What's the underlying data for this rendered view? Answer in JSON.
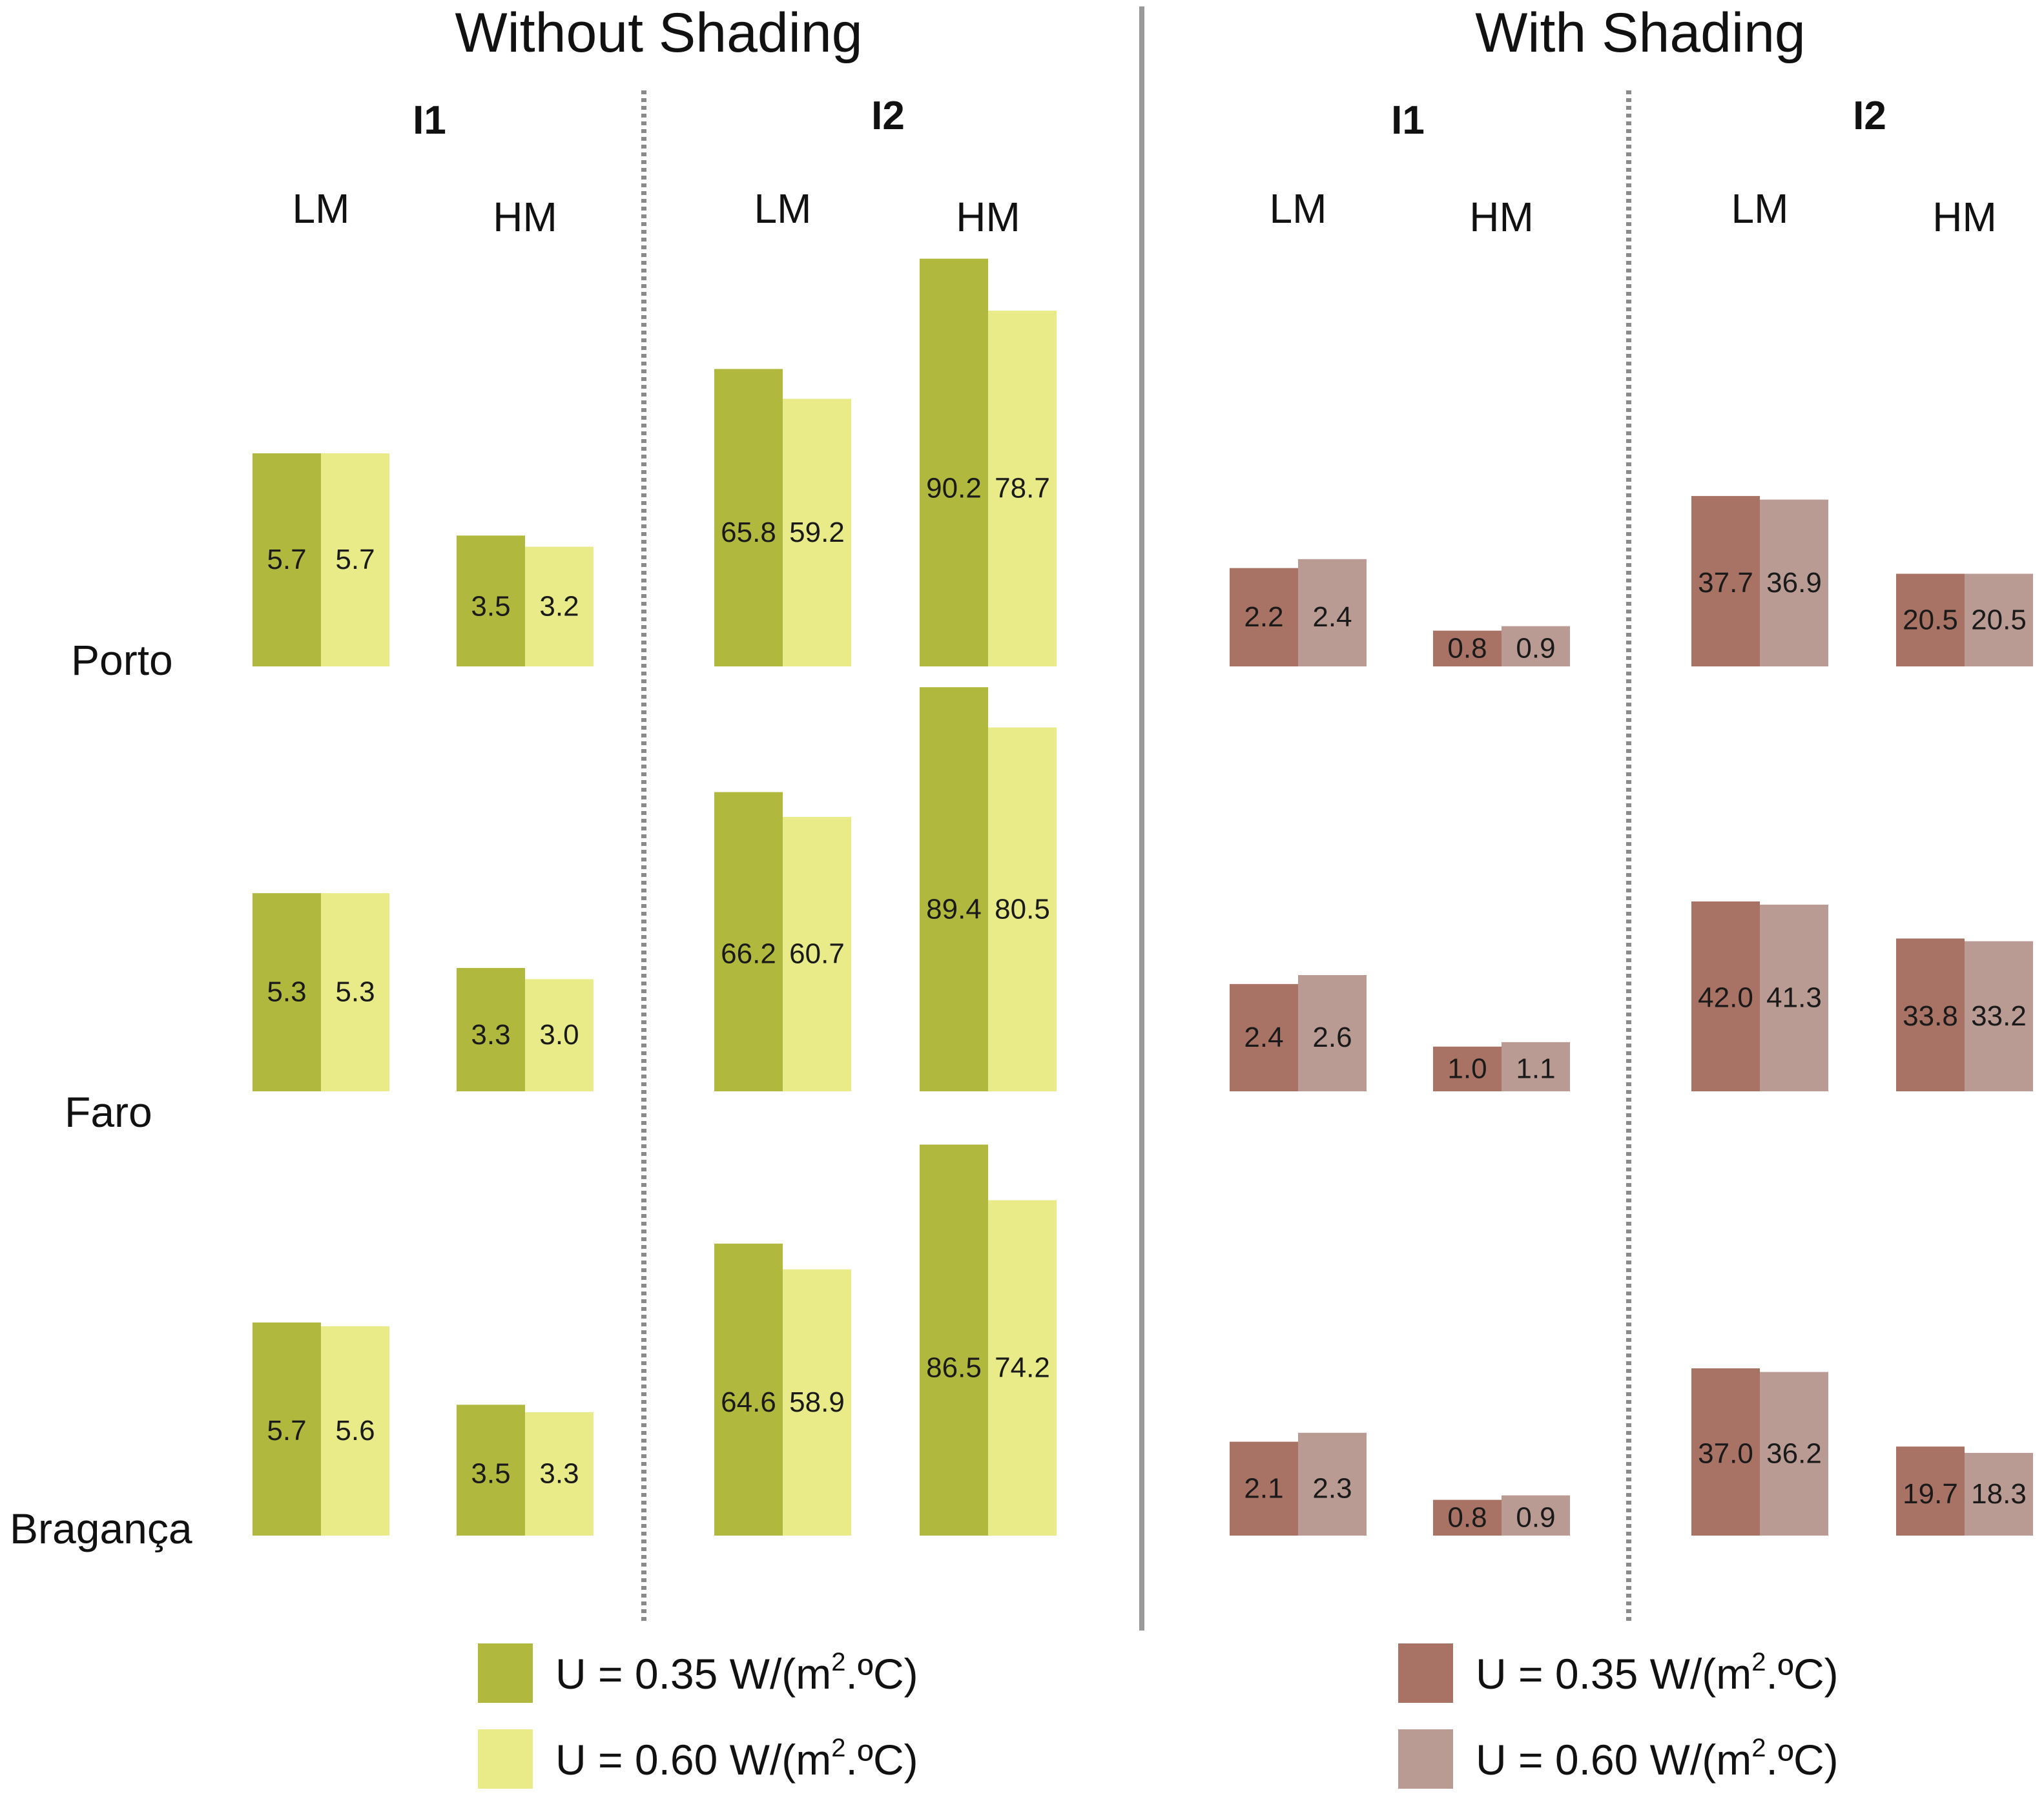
{
  "colors": {
    "u035_no_shading": "#b1b83e",
    "u060_no_shading": "#e8eb88",
    "u035_shading": "#a87264",
    "u060_shading": "#b99b93",
    "main_divider": "#999999",
    "dotted_divider": "#8a8a8a"
  },
  "chart_data": {
    "type": "bar",
    "panels": [
      {
        "title": "Without Shading",
        "groups": [
          "I1",
          "I2"
        ]
      },
      {
        "title": "With Shading",
        "groups": [
          "I1",
          "I2"
        ]
      }
    ],
    "subgroups": [
      "LM",
      "HM"
    ],
    "cities": [
      "Porto",
      "Faro",
      "Bragança"
    ],
    "series": [
      {
        "name": "U = 0.35 W/(m2.ºC)",
        "label_main": "U = 0.35  W/(m",
        "label_sup": "2",
        "label_end": ".ºC)"
      },
      {
        "name": "U = 0.60 W/(m2.ºC)",
        "label_main": "U = 0.60 W/(m",
        "label_sup": "2",
        "label_end": ".ºC)"
      }
    ],
    "values": {
      "Without Shading": {
        "I1": {
          "LM": {
            "Porto": [
              5.7,
              5.7
            ],
            "Faro": [
              5.3,
              5.3
            ],
            "Bragança": [
              5.7,
              5.6
            ]
          },
          "HM": {
            "Porto": [
              3.5,
              3.2
            ],
            "Faro": [
              3.3,
              3.0
            ],
            "Bragança": [
              3.5,
              3.3
            ]
          }
        },
        "I2": {
          "LM": {
            "Porto": [
              65.8,
              59.2
            ],
            "Faro": [
              66.2,
              60.7
            ],
            "Bragança": [
              64.6,
              58.9
            ]
          },
          "HM": {
            "Porto": [
              90.2,
              78.7
            ],
            "Faro": [
              89.4,
              80.5
            ],
            "Bragança": [
              86.5,
              74.2
            ]
          }
        }
      },
      "With Shading": {
        "I1": {
          "LM": {
            "Porto": [
              2.2,
              2.4
            ],
            "Faro": [
              2.4,
              2.6
            ],
            "Bragança": [
              2.1,
              2.3
            ]
          },
          "HM": {
            "Porto": [
              0.8,
              0.9
            ],
            "Faro": [
              1.0,
              1.1
            ],
            "Bragança": [
              0.8,
              0.9
            ]
          }
        },
        "I2": {
          "LM": {
            "Porto": [
              37.7,
              36.9
            ],
            "Faro": [
              42.0,
              41.3
            ],
            "Bragança": [
              37.0,
              36.2
            ]
          },
          "HM": {
            "Porto": [
              20.5,
              20.5
            ],
            "Faro": [
              33.8,
              33.2
            ],
            "Bragança": [
              19.7,
              18.3
            ]
          }
        }
      }
    }
  }
}
